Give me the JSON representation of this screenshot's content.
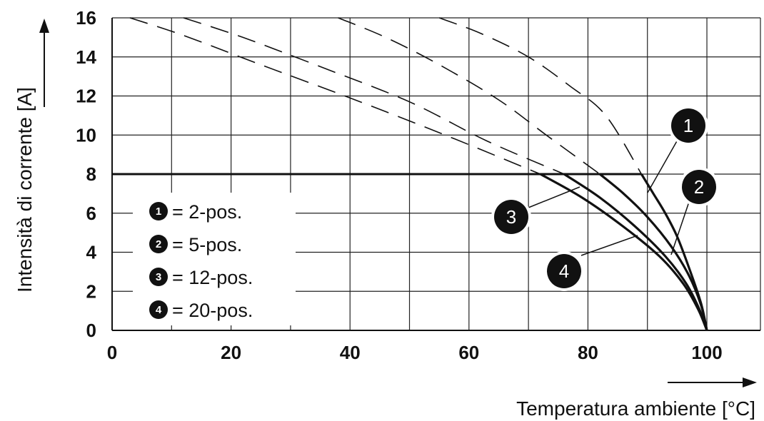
{
  "chart_data": {
    "type": "line",
    "title": "",
    "xlabel": "Temperatura ambiente [°C]",
    "ylabel": "Intensità di corrente [A]",
    "xlim": [
      0,
      100
    ],
    "ylim": [
      0,
      16
    ],
    "xticks": [
      0,
      20,
      40,
      60,
      80,
      100
    ],
    "yticks": [
      0,
      2,
      4,
      6,
      8,
      10,
      12,
      14,
      16
    ],
    "grid": true,
    "limit_line": {
      "value": 8,
      "x_from": 0,
      "x_to": 89
    },
    "series": [
      {
        "name": "2-pos.",
        "marker": "1",
        "solid": [
          [
            89,
            8
          ],
          [
            91,
            7
          ],
          [
            93,
            6
          ],
          [
            95,
            4.8
          ],
          [
            97,
            3.2
          ],
          [
            99,
            1.4
          ],
          [
            100,
            0
          ]
        ],
        "dashed": [
          [
            55,
            16
          ],
          [
            62,
            15.2
          ],
          [
            70,
            14
          ],
          [
            77,
            12.5
          ],
          [
            83,
            11
          ],
          [
            89,
            8
          ]
        ]
      },
      {
        "name": "5-pos.",
        "marker": "2",
        "solid": [
          [
            82,
            8
          ],
          [
            86,
            7
          ],
          [
            90,
            5.8
          ],
          [
            94,
            4.3
          ],
          [
            97,
            2.8
          ],
          [
            99,
            1.3
          ],
          [
            100,
            0
          ]
        ],
        "dashed": [
          [
            38,
            16
          ],
          [
            46,
            15
          ],
          [
            55,
            13.6
          ],
          [
            65,
            11.8
          ],
          [
            73,
            10
          ],
          [
            82,
            8
          ]
        ]
      },
      {
        "name": "12-pos.",
        "marker": "3",
        "solid": [
          [
            76,
            8
          ],
          [
            82,
            6.8
          ],
          [
            88,
            5.3
          ],
          [
            93,
            3.8
          ],
          [
            96.5,
            2.4
          ],
          [
            98.7,
            1.1
          ],
          [
            100,
            0
          ]
        ],
        "dashed": [
          [
            12,
            16
          ],
          [
            22,
            15
          ],
          [
            35,
            13.5
          ],
          [
            50,
            11.7
          ],
          [
            63,
            9.7
          ],
          [
            76,
            8
          ]
        ]
      },
      {
        "name": "20-pos.",
        "marker": "4",
        "solid": [
          [
            72,
            8
          ],
          [
            79,
            6.8
          ],
          [
            86,
            5.3
          ],
          [
            92,
            3.8
          ],
          [
            96,
            2.4
          ],
          [
            98.5,
            1.1
          ],
          [
            100,
            0
          ]
        ],
        "dashed": [
          [
            3,
            16
          ],
          [
            12,
            15.1
          ],
          [
            25,
            13.6
          ],
          [
            40,
            11.9
          ],
          [
            56,
            10
          ],
          [
            72,
            8
          ]
        ]
      }
    ],
    "legend": {
      "placement": "left-middle",
      "entries": [
        {
          "marker": "1",
          "label": "= 2-pos."
        },
        {
          "marker": "2",
          "label": "= 5-pos."
        },
        {
          "marker": "3",
          "label": "= 12-pos."
        },
        {
          "marker": "4",
          "label": "= 20-pos."
        }
      ]
    },
    "callouts": [
      {
        "marker": "1",
        "series": 0
      },
      {
        "marker": "2",
        "series": 1
      },
      {
        "marker": "3",
        "series": 2
      },
      {
        "marker": "4",
        "series": 3
      }
    ],
    "colors": {
      "line": "#111111",
      "grid": "#222222",
      "background": "#ffffff"
    }
  }
}
